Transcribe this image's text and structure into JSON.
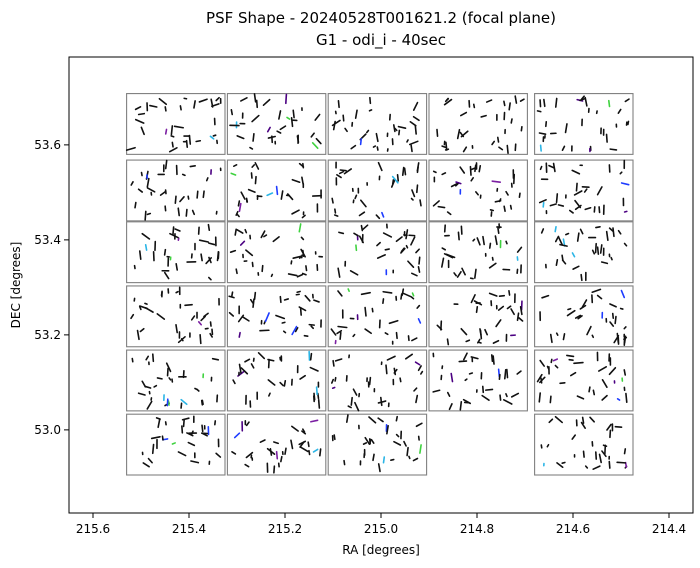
{
  "chart_data": {
    "type": "scatter",
    "title": "PSF Shape - 20240528T001621.2 (focal plane)",
    "subtitle": "G1 - odi_i - 40sec",
    "xlabel": "RA [degrees]",
    "ylabel": "DEC [degrees]",
    "xlim": [
      215.65,
      214.35
    ],
    "ylim": [
      52.825,
      53.785
    ],
    "x_inverted": true,
    "x_ticks": [
      215.6,
      215.4,
      215.2,
      215.0,
      214.8,
      214.6,
      214.4
    ],
    "x_tick_labels": [
      "215.6",
      "215.4",
      "215.2",
      "215.0",
      "214.8",
      "214.6",
      "214.4"
    ],
    "y_ticks": [
      53.0,
      53.2,
      53.4,
      53.6
    ],
    "y_tick_labels": [
      "53.0",
      "53.2",
      "53.4",
      "53.6"
    ],
    "grid": false,
    "colors": {
      "frame": "#000000",
      "ccd_outline": "#808080",
      "marker_default": "#111111",
      "marker_alt": [
        "#7b1fa2",
        "#1e3cff",
        "#2bb5e6",
        "#3fd23f",
        "#4b0082"
      ]
    },
    "ccd_grid": {
      "ra_left_edges": [
        215.53,
        215.32,
        215.11,
        214.9,
        214.68
      ],
      "ra_width": 0.205,
      "dec_bottom_edges": [
        52.905,
        53.04,
        53.175,
        53.31,
        53.44,
        53.58
      ],
      "dec_height": 0.128,
      "missing": [
        [
          0,
          3
        ]
      ]
    },
    "marker_count": 900
  }
}
